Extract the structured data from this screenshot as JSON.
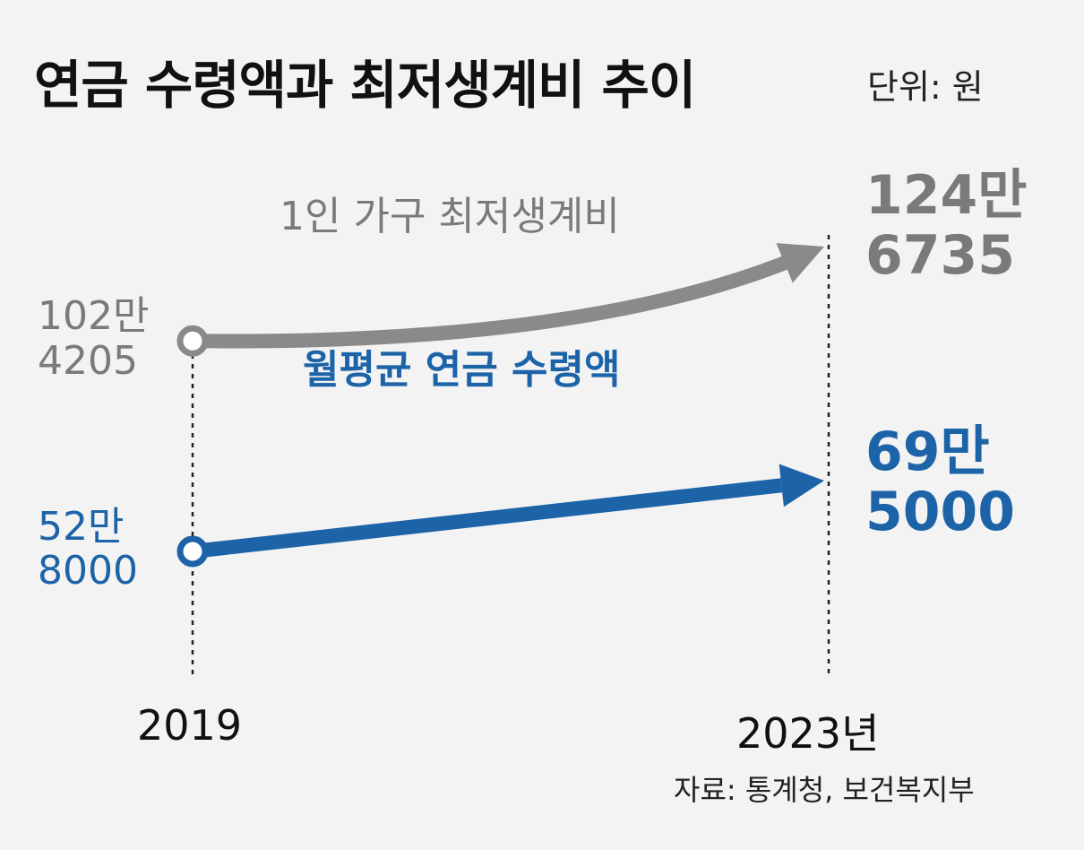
{
  "title": "연금 수령액과 최저생계비 추이",
  "unit": "단위: 원",
  "source": "자료: 통계청, 보건복지부",
  "chart_data": {
    "type": "line",
    "x": [
      "2019",
      "2023년"
    ],
    "series": [
      {
        "name": "1인 가구 최저생계비",
        "values": [
          1024205,
          1246735
        ],
        "labels": [
          [
            "102만",
            "4205"
          ],
          [
            "124만",
            "6735"
          ]
        ],
        "color": "#8a8a8a"
      },
      {
        "name": "월평균 연금 수령액",
        "values": [
          528000,
          695000
        ],
        "labels": [
          [
            "52만",
            "8000"
          ],
          [
            "69만",
            "5000"
          ]
        ],
        "color": "#1c63a8"
      }
    ],
    "ylabel": "",
    "xlabel": "",
    "grid": false,
    "legend": "inline"
  }
}
